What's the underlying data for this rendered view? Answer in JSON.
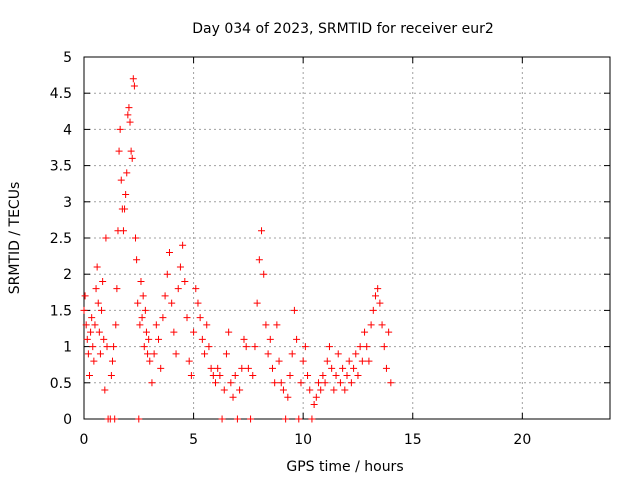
{
  "chart_data": {
    "type": "scatter",
    "title": "Day 034 of 2023, SRMTID for receiver eur2",
    "xlabel": "GPS time / hours",
    "ylabel": "SRMTID / TECUs",
    "xlim": [
      0,
      24
    ],
    "ylim": [
      0,
      5
    ],
    "xticks": [
      0,
      5,
      10,
      15,
      20
    ],
    "xtick_labels": [
      "0",
      "5",
      "10",
      "15",
      "20"
    ],
    "yticks": [
      0,
      0.5,
      1,
      1.5,
      2,
      2.5,
      3,
      3.5,
      4,
      4.5,
      5
    ],
    "ytick_labels": [
      "0",
      "0.5",
      "1",
      "1.5",
      "2",
      "2.5",
      "3",
      "3.5",
      "4",
      "4.5",
      "5"
    ],
    "grid": true,
    "marker": "+",
    "series": [
      {
        "name": "SRMTID",
        "color": "#ff0000",
        "points": [
          [
            0.0,
            1.5
          ],
          [
            0.05,
            1.7
          ],
          [
            0.1,
            1.3
          ],
          [
            0.15,
            1.1
          ],
          [
            0.2,
            0.9
          ],
          [
            0.25,
            0.6
          ],
          [
            0.3,
            1.2
          ],
          [
            0.35,
            1.4
          ],
          [
            0.4,
            1.0
          ],
          [
            0.45,
            0.8
          ],
          [
            0.5,
            1.3
          ],
          [
            0.55,
            1.8
          ],
          [
            0.6,
            2.1
          ],
          [
            0.65,
            1.6
          ],
          [
            0.7,
            1.2
          ],
          [
            0.75,
            0.9
          ],
          [
            0.8,
            1.5
          ],
          [
            0.85,
            1.9
          ],
          [
            0.9,
            1.1
          ],
          [
            0.95,
            0.4
          ],
          [
            1.0,
            2.5
          ],
          [
            1.05,
            1.0
          ],
          [
            1.1,
            0.0
          ],
          [
            1.2,
            0.0
          ],
          [
            1.25,
            0.6
          ],
          [
            1.3,
            0.8
          ],
          [
            1.35,
            1.0
          ],
          [
            1.4,
            0.0
          ],
          [
            1.45,
            1.3
          ],
          [
            1.5,
            1.8
          ],
          [
            1.55,
            2.6
          ],
          [
            1.6,
            3.7
          ],
          [
            1.65,
            4.0
          ],
          [
            1.7,
            3.3
          ],
          [
            1.75,
            2.9
          ],
          [
            1.8,
            2.6
          ],
          [
            1.85,
            2.9
          ],
          [
            1.9,
            3.1
          ],
          [
            1.95,
            3.4
          ],
          [
            2.0,
            4.2
          ],
          [
            2.05,
            4.3
          ],
          [
            2.1,
            4.1
          ],
          [
            2.15,
            3.7
          ],
          [
            2.2,
            3.6
          ],
          [
            2.25,
            4.7
          ],
          [
            2.3,
            4.6
          ],
          [
            2.35,
            2.5
          ],
          [
            2.4,
            2.2
          ],
          [
            2.45,
            1.6
          ],
          [
            2.5,
            0.0
          ],
          [
            2.55,
            1.3
          ],
          [
            2.6,
            1.9
          ],
          [
            2.65,
            1.4
          ],
          [
            2.7,
            1.7
          ],
          [
            2.75,
            1.0
          ],
          [
            2.8,
            1.5
          ],
          [
            2.85,
            1.2
          ],
          [
            2.9,
            0.9
          ],
          [
            2.95,
            1.1
          ],
          [
            3.0,
            0.8
          ],
          [
            3.1,
            0.5
          ],
          [
            3.2,
            0.9
          ],
          [
            3.3,
            1.3
          ],
          [
            3.4,
            1.1
          ],
          [
            3.5,
            0.7
          ],
          [
            3.6,
            1.4
          ],
          [
            3.7,
            1.7
          ],
          [
            3.8,
            2.0
          ],
          [
            3.9,
            2.3
          ],
          [
            4.0,
            1.6
          ],
          [
            4.1,
            1.2
          ],
          [
            4.2,
            0.9
          ],
          [
            4.3,
            1.8
          ],
          [
            4.4,
            2.1
          ],
          [
            4.5,
            2.4
          ],
          [
            4.6,
            1.9
          ],
          [
            4.7,
            1.4
          ],
          [
            4.8,
            0.8
          ],
          [
            4.9,
            0.6
          ],
          [
            5.0,
            1.2
          ],
          [
            5.1,
            1.8
          ],
          [
            5.2,
            1.6
          ],
          [
            5.3,
            1.4
          ],
          [
            5.4,
            1.1
          ],
          [
            5.5,
            0.9
          ],
          [
            5.6,
            1.3
          ],
          [
            5.7,
            1.0
          ],
          [
            5.8,
            0.7
          ],
          [
            5.9,
            0.6
          ],
          [
            6.0,
            0.5
          ],
          [
            6.1,
            0.7
          ],
          [
            6.2,
            0.6
          ],
          [
            6.3,
            0.0
          ],
          [
            6.4,
            0.4
          ],
          [
            6.5,
            0.9
          ],
          [
            6.6,
            1.2
          ],
          [
            6.7,
            0.5
          ],
          [
            6.8,
            0.3
          ],
          [
            6.9,
            0.6
          ],
          [
            7.0,
            0.0
          ],
          [
            7.1,
            0.4
          ],
          [
            7.2,
            0.7
          ],
          [
            7.3,
            1.1
          ],
          [
            7.4,
            1.0
          ],
          [
            7.5,
            0.7
          ],
          [
            7.6,
            0.0
          ],
          [
            7.7,
            0.6
          ],
          [
            7.8,
            1.0
          ],
          [
            7.9,
            1.6
          ],
          [
            8.0,
            2.2
          ],
          [
            8.1,
            2.6
          ],
          [
            8.2,
            2.0
          ],
          [
            8.3,
            1.3
          ],
          [
            8.4,
            0.9
          ],
          [
            8.5,
            1.1
          ],
          [
            8.6,
            0.7
          ],
          [
            8.7,
            0.5
          ],
          [
            8.8,
            1.3
          ],
          [
            8.9,
            0.8
          ],
          [
            9.0,
            0.5
          ],
          [
            9.1,
            0.4
          ],
          [
            9.2,
            0.0
          ],
          [
            9.3,
            0.3
          ],
          [
            9.4,
            0.6
          ],
          [
            9.5,
            0.9
          ],
          [
            9.6,
            1.5
          ],
          [
            9.7,
            1.1
          ],
          [
            9.8,
            0.0
          ],
          [
            9.9,
            0.5
          ],
          [
            10.0,
            0.8
          ],
          [
            10.1,
            1.0
          ],
          [
            10.2,
            0.6
          ],
          [
            10.3,
            0.4
          ],
          [
            10.4,
            0.0
          ],
          [
            10.5,
            0.2
          ],
          [
            10.6,
            0.3
          ],
          [
            10.7,
            0.5
          ],
          [
            10.8,
            0.4
          ],
          [
            10.9,
            0.6
          ],
          [
            11.0,
            0.5
          ],
          [
            11.1,
            0.8
          ],
          [
            11.2,
            1.0
          ],
          [
            11.3,
            0.7
          ],
          [
            11.4,
            0.4
          ],
          [
            11.5,
            0.6
          ],
          [
            11.6,
            0.9
          ],
          [
            11.7,
            0.5
          ],
          [
            11.8,
            0.7
          ],
          [
            11.9,
            0.4
          ],
          [
            12.0,
            0.6
          ],
          [
            12.1,
            0.8
          ],
          [
            12.2,
            0.5
          ],
          [
            12.3,
            0.7
          ],
          [
            12.4,
            0.9
          ],
          [
            12.5,
            0.6
          ],
          [
            12.6,
            1.0
          ],
          [
            12.7,
            0.8
          ],
          [
            12.8,
            1.2
          ],
          [
            12.9,
            1.0
          ],
          [
            13.0,
            0.8
          ],
          [
            13.1,
            1.3
          ],
          [
            13.2,
            1.5
          ],
          [
            13.3,
            1.7
          ],
          [
            13.4,
            1.8
          ],
          [
            13.5,
            1.6
          ],
          [
            13.6,
            1.3
          ],
          [
            13.7,
            1.0
          ],
          [
            13.8,
            0.7
          ],
          [
            13.9,
            1.2
          ],
          [
            14.0,
            0.5
          ]
        ]
      }
    ]
  }
}
